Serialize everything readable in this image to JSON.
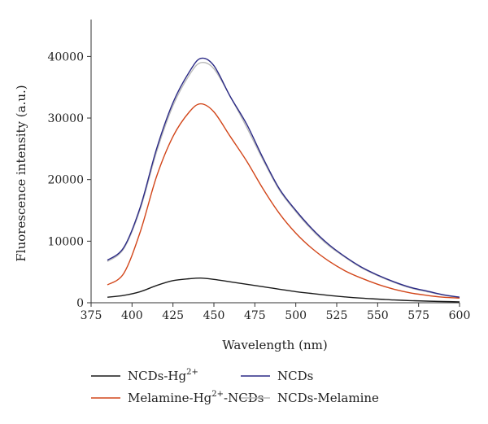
{
  "chart_data": {
    "type": "line",
    "xlabel": "Wavelength (nm)",
    "ylabel": "Fluorescence intensity (a.u.)",
    "xlim": [
      375,
      600
    ],
    "ylim": [
      0,
      46000
    ],
    "xticks": [
      375,
      400,
      425,
      450,
      475,
      500,
      525,
      550,
      575,
      600
    ],
    "yticks": [
      0,
      10000,
      20000,
      30000,
      40000
    ],
    "x": [
      385,
      395,
      405,
      415,
      425,
      435,
      442,
      450,
      460,
      470,
      480,
      490,
      500,
      510,
      520,
      530,
      540,
      550,
      560,
      570,
      580,
      590,
      600
    ],
    "legend_position": "bottom",
    "series": [
      {
        "name": "NCDs-Hg2+",
        "name_parts": [
          "NCDs-Hg",
          "2+",
          ""
        ],
        "color": "#1a1a1a",
        "values": [
          900,
          1200,
          1800,
          2800,
          3600,
          3900,
          4000,
          3800,
          3400,
          3000,
          2600,
          2200,
          1800,
          1500,
          1200,
          950,
          750,
          600,
          450,
          350,
          270,
          200,
          150
        ]
      },
      {
        "name": "NCDs",
        "color": "#2b2a86",
        "values": [
          6900,
          9000,
          15500,
          25000,
          32500,
          37500,
          39700,
          38500,
          33500,
          29000,
          23500,
          18500,
          15000,
          12000,
          9500,
          7500,
          5800,
          4500,
          3400,
          2500,
          1900,
          1300,
          900
        ]
      },
      {
        "name": "Melamine-Hg2+-NCDs",
        "name_parts": [
          "Melamine-Hg",
          "2+",
          "-NCDs"
        ],
        "color": "#d2461a",
        "values": [
          2900,
          4800,
          11500,
          20500,
          27000,
          31000,
          32300,
          31000,
          27000,
          23000,
          18500,
          14500,
          11300,
          8800,
          6800,
          5200,
          4000,
          3000,
          2200,
          1600,
          1200,
          900,
          750
        ]
      },
      {
        "name": "NCDs-Melamine",
        "color": "#b9b9b9",
        "values": [
          6700,
          8800,
          15200,
          24500,
          32000,
          37000,
          39000,
          38000,
          33500,
          28500,
          23200,
          18300,
          14800,
          11800,
          9300,
          7400,
          5700,
          4400,
          3300,
          2400,
          1800,
          1250,
          850
        ]
      }
    ]
  }
}
